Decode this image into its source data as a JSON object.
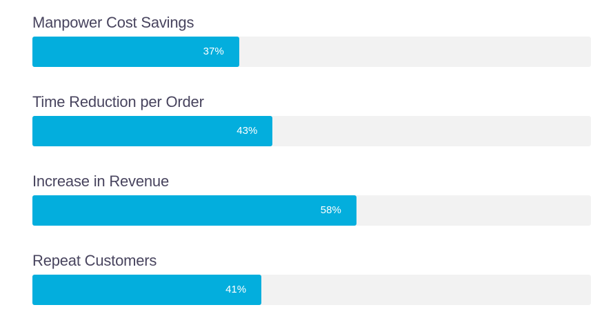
{
  "accent_color": "#03aedd",
  "track_color": "#f2f2f2",
  "bars": [
    {
      "label": "Manpower Cost Savings",
      "percent": 37,
      "percent_label": "37%"
    },
    {
      "label": "Time Reduction per Order",
      "percent": 43,
      "percent_label": "43%"
    },
    {
      "label": "Increase in Revenue",
      "percent": 58,
      "percent_label": "58%"
    },
    {
      "label": "Repeat Customers",
      "percent": 41,
      "percent_label": "41%"
    }
  ]
}
